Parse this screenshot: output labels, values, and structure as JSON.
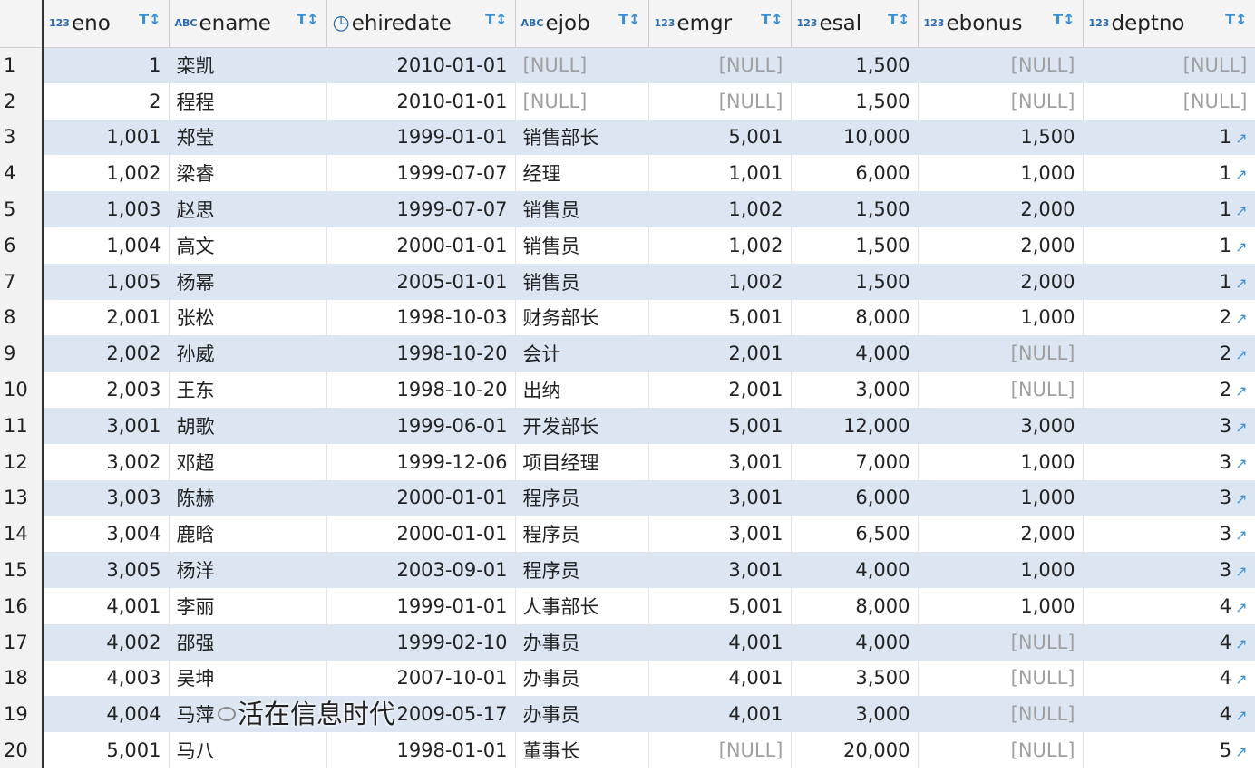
{
  "columns": [
    {
      "name": "eno",
      "type_icon": "123",
      "icon": "numeric-key-icon"
    },
    {
      "name": "ename",
      "type_icon": "ABC",
      "icon": "text-type-icon"
    },
    {
      "name": "ehiredate",
      "type_icon": "◷",
      "icon": "date-type-icon"
    },
    {
      "name": "ejob",
      "type_icon": "ABC",
      "icon": "text-type-icon"
    },
    {
      "name": "emgr",
      "type_icon": "123",
      "icon": "numeric-type-icon"
    },
    {
      "name": "esal",
      "type_icon": "123",
      "icon": "numeric-type-icon"
    },
    {
      "name": "ebonus",
      "type_icon": "123",
      "icon": "numeric-type-icon"
    },
    {
      "name": "deptno",
      "type_icon": "123",
      "icon": "foreign-key-icon"
    }
  ],
  "filter_icon": "T↕",
  "link_icon": "↗",
  "null_text": "[NULL]",
  "rows": [
    [
      "1",
      "1",
      "栾凯",
      "2010-01-01",
      "[NULL]",
      "[NULL]",
      "1,500",
      "[NULL]",
      "[NULL]"
    ],
    [
      "2",
      "2",
      "程程",
      "2010-01-01",
      "[NULL]",
      "[NULL]",
      "1,500",
      "[NULL]",
      "[NULL]"
    ],
    [
      "3",
      "1,001",
      "郑莹",
      "1999-01-01",
      "销售部长",
      "5,001",
      "10,000",
      "1,500",
      "1"
    ],
    [
      "4",
      "1,002",
      "梁睿",
      "1999-07-07",
      "经理",
      "1,001",
      "6,000",
      "1,000",
      "1"
    ],
    [
      "5",
      "1,003",
      "赵思",
      "1999-07-07",
      "销售员",
      "1,002",
      "1,500",
      "2,000",
      "1"
    ],
    [
      "6",
      "1,004",
      "高文",
      "2000-01-01",
      "销售员",
      "1,002",
      "1,500",
      "2,000",
      "1"
    ],
    [
      "7",
      "1,005",
      "杨幂",
      "2005-01-01",
      "销售员",
      "1,002",
      "1,500",
      "2,000",
      "1"
    ],
    [
      "8",
      "2,001",
      "张松",
      "1998-10-03",
      "财务部长",
      "5,001",
      "8,000",
      "1,000",
      "2"
    ],
    [
      "9",
      "2,002",
      "孙威",
      "1998-10-20",
      "会计",
      "2,001",
      "4,000",
      "[NULL]",
      "2"
    ],
    [
      "10",
      "2,003",
      "王东",
      "1998-10-20",
      "出纳",
      "2,001",
      "3,000",
      "[NULL]",
      "2"
    ],
    [
      "11",
      "3,001",
      "胡歌",
      "1999-06-01",
      "开发部长",
      "5,001",
      "12,000",
      "3,000",
      "3"
    ],
    [
      "12",
      "3,002",
      "邓超",
      "1999-12-06",
      "项目经理",
      "3,001",
      "7,000",
      "1,000",
      "3"
    ],
    [
      "13",
      "3,003",
      "陈赫",
      "2000-01-01",
      "程序员",
      "3,001",
      "6,000",
      "1,000",
      "3"
    ],
    [
      "14",
      "3,004",
      "鹿晗",
      "2000-01-01",
      "程序员",
      "3,001",
      "6,500",
      "2,000",
      "3"
    ],
    [
      "15",
      "3,005",
      "杨洋",
      "2003-09-01",
      "程序员",
      "3,001",
      "4,000",
      "1,000",
      "3"
    ],
    [
      "16",
      "4,001",
      "李丽",
      "1999-01-01",
      "人事部长",
      "5,001",
      "8,000",
      "1,000",
      "4"
    ],
    [
      "17",
      "4,002",
      "邵强",
      "1999-02-10",
      "办事员",
      "4,001",
      "4,000",
      "[NULL]",
      "4"
    ],
    [
      "18",
      "4,003",
      "吴坤",
      "2007-10-01",
      "办事员",
      "4,001",
      "3,500",
      "[NULL]",
      "4"
    ],
    [
      "19",
      "4,004",
      "马萍",
      "2009-05-17",
      "办事员",
      "4,001",
      "3,000",
      "[NULL]",
      "4"
    ],
    [
      "20",
      "5,001",
      "马八",
      "1998-01-01",
      "董事长",
      "[NULL]",
      "20,000",
      "[NULL]",
      "5"
    ]
  ],
  "watermark": "活在信息时代"
}
